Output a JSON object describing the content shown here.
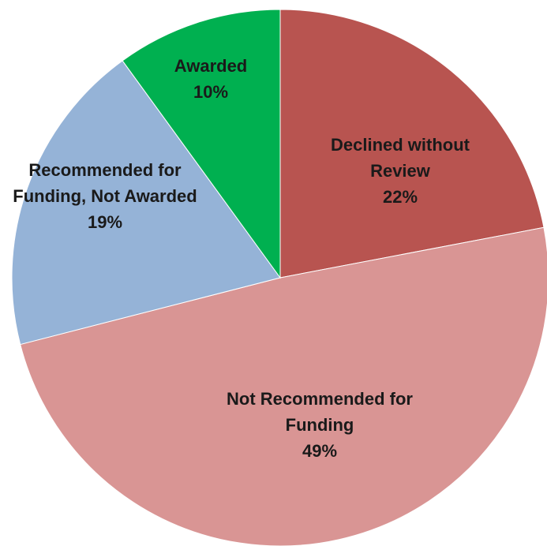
{
  "chart_data": {
    "type": "pie",
    "categories": [
      "Declined without Review",
      "Not Recommended for Funding",
      "Recommended for Funding, Not Awarded",
      "Awarded"
    ],
    "values": [
      22,
      49,
      19,
      10
    ],
    "value_labels": [
      "22%",
      "49%",
      "19%",
      "10%"
    ],
    "colors": [
      "#b85450",
      "#d99594",
      "#95b3d7",
      "#00b050"
    ],
    "start_angle": 0,
    "direction": "clockwise"
  }
}
